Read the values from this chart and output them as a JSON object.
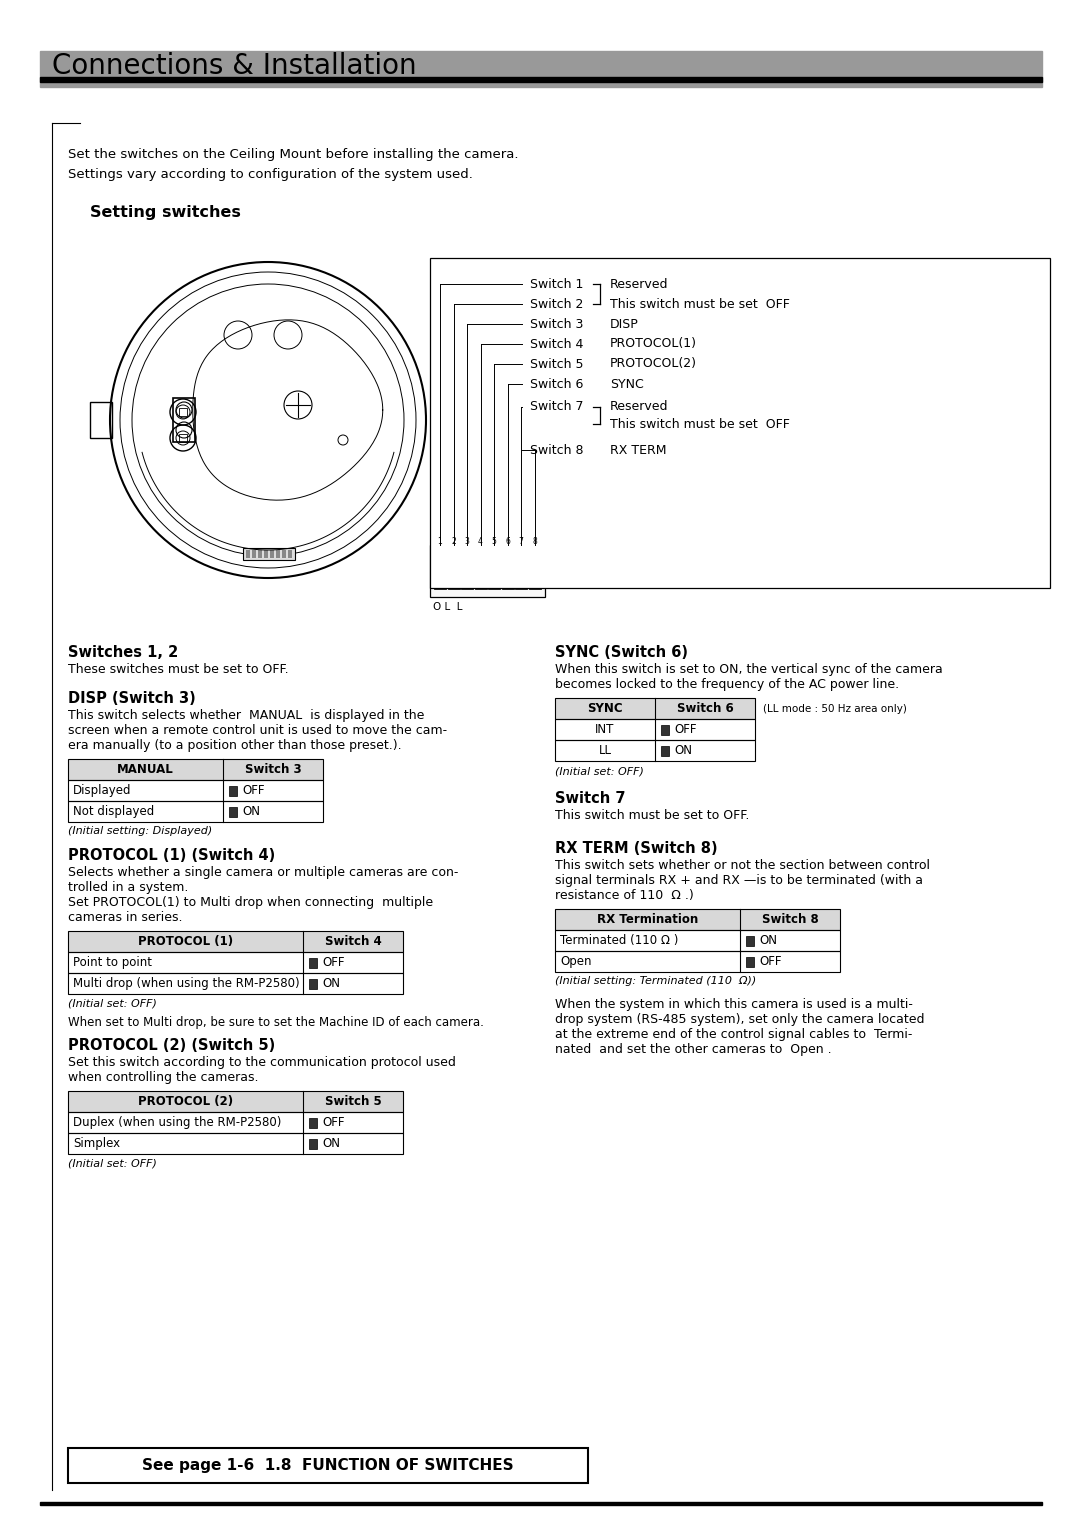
{
  "page_bg": "#ffffff",
  "title": "Connections & Installation",
  "title_fontsize": 20,
  "gray_bar_color": "#999999",
  "section_title": "Setting switches",
  "intro_line1": "Set the switches on the Ceiling Mount before installing the camera.",
  "intro_line2": "Settings vary according to configuration of the system used.",
  "sw12_title": "Switches 1, 2",
  "sw12_text": "These switches must be set to OFF.",
  "disp_title": "DISP (Switch 3)",
  "disp_line1": "This switch selects whether  MANUAL  is displayed in the",
  "disp_line2": "screen when a remote control unit is used to move the cam-",
  "disp_line3": "era manually (to a position other than those preset.).",
  "disp_table_headers": [
    "MANUAL",
    "Switch 3"
  ],
  "disp_table_rows": [
    [
      "Displayed",
      "OFF"
    ],
    [
      "Not displayed",
      "ON"
    ]
  ],
  "disp_initial": "(Initial setting: Displayed)",
  "proto1_title": "PROTOCOL (1) (Switch 4)",
  "proto1_line1": "Selects whether a single camera or multiple cameras are con-",
  "proto1_line2": "trolled in a system.",
  "proto1_line3": "Set PROTOCOL(1) to Multi drop when connecting  multiple",
  "proto1_line4": "cameras in series.",
  "proto1_table_headers": [
    "PROTOCOL (1)",
    "Switch 4"
  ],
  "proto1_table_rows": [
    [
      "Point to point",
      "OFF"
    ],
    [
      "Multi drop (when using the RM-P2580)",
      "ON"
    ]
  ],
  "proto1_initial": "(Initial set: OFF)",
  "proto1_note": "When set to Multi drop, be sure to set the Machine ID of each camera.",
  "proto2_title": "PROTOCOL (2) (Switch 5)",
  "proto2_line1": "Set this switch according to the communication protocol used",
  "proto2_line2": "when controlling the cameras.",
  "proto2_table_headers": [
    "PROTOCOL (2)",
    "Switch 5"
  ],
  "proto2_table_rows": [
    [
      "Duplex (when using the RM-P2580)",
      "OFF"
    ],
    [
      "Simplex",
      "ON"
    ]
  ],
  "proto2_initial": "(Initial set: OFF)",
  "sync_title": "SYNC (Switch 6)",
  "sync_line1": "When this switch is set to ON, the vertical sync of the camera",
  "sync_line2": "becomes locked to the frequency of the AC power line.",
  "sync_table_headers": [
    "SYNC",
    "Switch 6"
  ],
  "sync_table_note": "(LL mode : 50 Hz area only)",
  "sync_table_rows": [
    [
      "INT",
      "OFF"
    ],
    [
      "LL",
      "ON"
    ]
  ],
  "sync_initial": "(Initial set: OFF)",
  "sw7_title": "Switch 7",
  "sw7_text": "This switch must be set to OFF.",
  "rxterm_title": "RX TERM (Switch 8)",
  "rxterm_line1": "This switch sets whether or not the section between control",
  "rxterm_line2": "signal terminals RX + and RX —is to be terminated (with a",
  "rxterm_line3": "resistance of 110  Ω .)",
  "rxterm_table_headers": [
    "RX Termination",
    "Switch 8"
  ],
  "rxterm_table_rows": [
    [
      "Terminated (110 Ω )",
      "ON"
    ],
    [
      "Open",
      "OFF"
    ]
  ],
  "rxterm_initial": "(Initial setting: Terminated (110  Ω))",
  "rxterm_note1": "When the system in which this camera is used is a multi-",
  "rxterm_note2": "drop system (RS-485 system), set only the camera located",
  "rxterm_note3": "at the extreme end of the control signal cables to  Termi-",
  "rxterm_note4": "nated  and set the other cameras to  Open .",
  "footer_text": "See page 1-6  1.8  FUNCTION OF SWITCHES",
  "switch_rows": [
    [
      "Switch 1",
      "Reserved",
      false
    ],
    [
      "Switch 2",
      "This switch must be set  OFF",
      true
    ],
    [
      "Switch 3",
      "DISP",
      false
    ],
    [
      "Switch 4",
      "PROTOCOL(1)",
      false
    ],
    [
      "Switch 5",
      "PROTOCOL(2)",
      false
    ],
    [
      "Switch 6",
      "SYNC",
      false
    ],
    [
      "Switch 7",
      "Reserved",
      false
    ],
    [
      "",
      "This switch must be set  OFF",
      true
    ],
    [
      "Switch 8",
      "RX TERM",
      false
    ]
  ]
}
